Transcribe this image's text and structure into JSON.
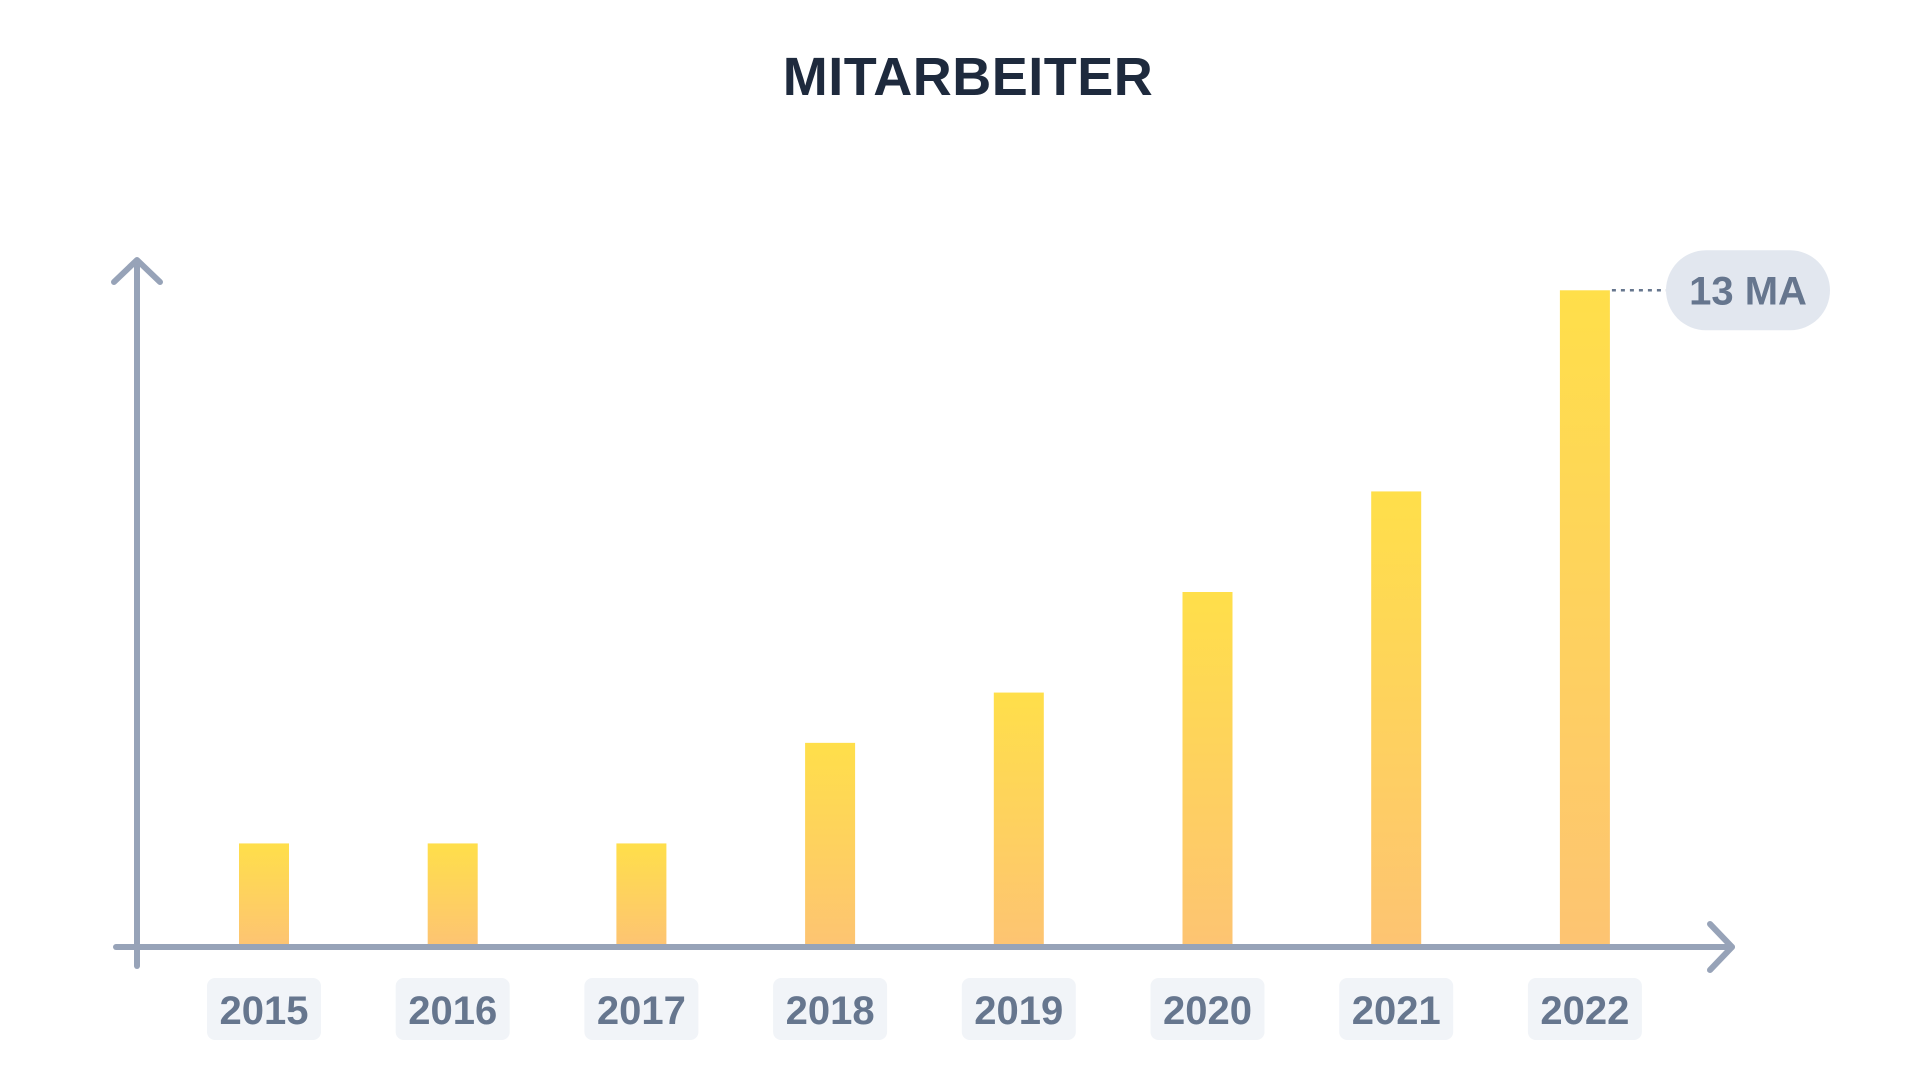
{
  "chart_data": {
    "type": "bar",
    "title": "MITARBEITER",
    "categories": [
      "2015",
      "2016",
      "2017",
      "2018",
      "2019",
      "2020",
      "2021",
      "2022"
    ],
    "values": [
      2,
      2,
      2,
      4,
      5,
      7,
      9,
      13
    ],
    "xlabel": "",
    "ylabel": "",
    "ylim": [
      0,
      14
    ],
    "annotation": {
      "category": "2022",
      "label": "13 MA"
    },
    "grid": false,
    "colors": {
      "bar_top": "#ffdf4a",
      "bar_bottom": "#fdc472",
      "axis": "#97a3b8",
      "label_text": "#66768e",
      "title_text": "#1e2a3d"
    }
  }
}
